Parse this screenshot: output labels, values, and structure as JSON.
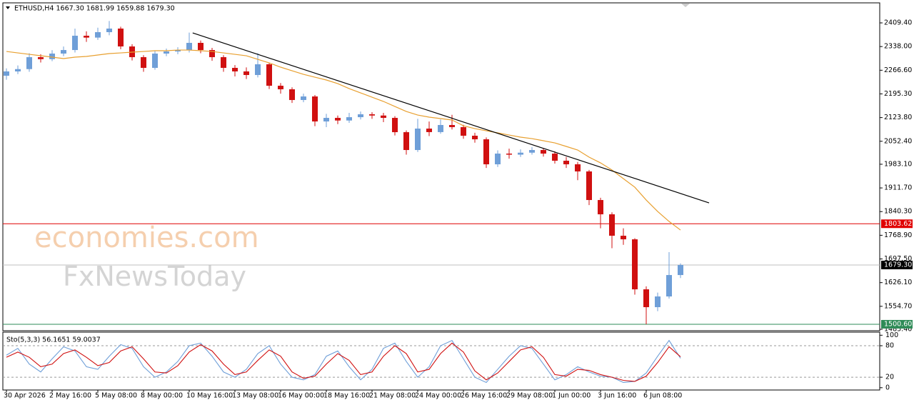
{
  "chart_data": [
    {
      "type": "candlestick",
      "title": "ETHUSD,H4  1667.30 1681.99 1659.88 1679.30",
      "watermark": [
        "economies.com",
        "FxNewsToday"
      ],
      "categories": [
        "30 Apr 2026",
        null,
        null,
        null,
        "2 May 16:00",
        null,
        null,
        null,
        "5 May 08:00",
        null,
        null,
        null,
        "8 May 00:00",
        null,
        null,
        null,
        "10 May 16:00",
        null,
        null,
        null,
        "13 May 08:00",
        null,
        null,
        null,
        "16 May 00:00",
        null,
        null,
        null,
        "18 May 16:00",
        null,
        null,
        null,
        "21 May 08:00",
        null,
        null,
        null,
        "24 May 00:00",
        null,
        null,
        null,
        "26 May 16:00",
        null,
        null,
        null,
        "29 May 08:00",
        null,
        null,
        null,
        "1 Jun 00:00",
        null,
        null,
        null,
        "3 Jun 16:00",
        null,
        null,
        null,
        "6 Jun 08:00",
        null,
        null,
        null
      ],
      "open": [
        2250.0,
        2263.0,
        2270.0,
        2306.0,
        2300.0,
        2316.8,
        2327.5,
        2370.6,
        2365.0,
        2381.4,
        2392.2,
        2338.3,
        2306.0,
        2273.7,
        2316.8,
        2323.2,
        2327.5,
        2349.1,
        2327.5,
        2306.0,
        2273.7,
        2263.0,
        2252.2,
        2284.5,
        2219.8,
        2209.1,
        2176.8,
        2187.5,
        2112.1,
        2122.9,
        2115.0,
        2125.0,
        2133.7,
        2130.0,
        2122.9,
        2079.8,
        2026.0,
        2090.6,
        2080.0,
        2101.4,
        2095.0,
        2069.1,
        2058.3,
        1982.9,
        2015.2,
        2012.0,
        2018.0,
        2026.0,
        2015.2,
        1993.7,
        1982.9,
        1961.4,
        1875.2,
        1832.1,
        1767.5,
        1756.7,
        1605.9,
        1552.1,
        1584.4,
        1649.0
      ],
      "high": [
        2272,
        2281,
        2318,
        2315,
        2327,
        2338,
        2392,
        2384,
        2395,
        2415,
        2398,
        2345,
        2312,
        2324,
        2332,
        2336,
        2380,
        2356,
        2334,
        2312,
        2282,
        2275,
        2318,
        2290,
        2228,
        2215,
        2196,
        2192,
        2135,
        2130,
        2138,
        2142,
        2140,
        2138,
        2128,
        2085,
        2120,
        2112,
        2118,
        2132,
        2102,
        2078,
        2064,
        2025,
        2030,
        2028,
        2035,
        2032,
        2022,
        2005,
        1990,
        1966,
        1882,
        1838,
        1790,
        1760,
        1615,
        1596,
        1718,
        1684
      ],
      "low": [
        2238,
        2255,
        2262,
        2290,
        2294,
        2309,
        2320,
        2352,
        2358,
        2372,
        2330,
        2296,
        2262,
        2268,
        2309,
        2315,
        2320,
        2318,
        2295,
        2262,
        2248,
        2240,
        2245,
        2210,
        2196,
        2168,
        2170,
        2098,
        2095,
        2104,
        2108,
        2118,
        2120,
        2110,
        2070,
        2012,
        2020,
        2068,
        2075,
        2088,
        2060,
        2048,
        1972,
        1975,
        2000,
        2005,
        2012,
        2006,
        1985,
        1972,
        1935,
        1860,
        1790,
        1730,
        1740,
        1590,
        1500.6,
        1540,
        1578,
        1640
      ],
      "close": [
        2263.0,
        2270.0,
        2306.0,
        2300.0,
        2316.8,
        2327.5,
        2370.6,
        2365.0,
        2381.4,
        2392.2,
        2338.3,
        2306.0,
        2273.7,
        2316.8,
        2323.2,
        2327.5,
        2349.1,
        2327.5,
        2306.0,
        2273.7,
        2263.0,
        2252.2,
        2284.5,
        2219.8,
        2209.1,
        2176.8,
        2187.5,
        2112.1,
        2122.9,
        2115.0,
        2125.0,
        2133.7,
        2130.0,
        2122.9,
        2079.8,
        2026.0,
        2090.6,
        2080.0,
        2101.4,
        2095.0,
        2069.1,
        2058.3,
        1982.9,
        2015.2,
        2012.0,
        2018.0,
        2026.0,
        2015.2,
        1993.7,
        1982.9,
        1961.4,
        1875.2,
        1832.1,
        1767.5,
        1756.7,
        1605.9,
        1552.1,
        1584.4,
        1649.0,
        1679.3
      ],
      "up_color": "#6f9fd8",
      "down_color": "#d01010",
      "ma": {
        "color": "#e8a030",
        "values": [
          2323.2,
          2318.9,
          2314.6,
          2310.3,
          2306.0,
          2301.7,
          2306.0,
          2308.2,
          2312.5,
          2316.8,
          2318.9,
          2321.1,
          2323.2,
          2325.4,
          2325.4,
          2327.5,
          2327.5,
          2325.4,
          2323.2,
          2318.9,
          2314.6,
          2310.3,
          2299.5,
          2288.8,
          2275.9,
          2265.1,
          2254.3,
          2245.7,
          2237.1,
          2226.3,
          2211.2,
          2198.3,
          2185.4,
          2172.5,
          2157.4,
          2142.3,
          2131.5,
          2125.1,
          2120.8,
          2116.5,
          2099.2,
          2090.6,
          2084.1,
          2077.7,
          2071.2,
          2064.8,
          2060.4,
          2054.0,
          2047.5,
          2036.8,
          2026.0,
          2004.5,
          1987.2,
          1965.7,
          1939.6,
          1913.9,
          1875.2,
          1840.7,
          1810.6,
          1784.7
        ]
      },
      "trendline": {
        "color": "#000000",
        "x": [
          16.3,
          61.5
        ],
        "y": [
          2379.2,
          1866.6
        ]
      },
      "hlines": [
        {
          "value": 1803.62,
          "label": "1803.62",
          "color": "#e00000",
          "label_color": "#e00000"
        },
        {
          "value": 1500.6,
          "label": "1500.60",
          "color": "#2e8b57",
          "label_color": "#2e8b57"
        },
        {
          "value": 1679.3,
          "label": "1679.30",
          "color": "#c0c0c0",
          "label_color": "#000000"
        }
      ],
      "ylim": [
        1481.1,
        2467.6
      ],
      "yticks": [
        {
          "value": 2409.4,
          "label": "2409.40"
        },
        {
          "value": 2338,
          "label": "2338.00"
        },
        {
          "value": 2266.6,
          "label": "2266.60"
        },
        {
          "value": 2195.3,
          "label": "2195.30"
        },
        {
          "value": 2123.8,
          "label": "2123.80"
        },
        {
          "value": 2052.4,
          "label": "2052.40"
        },
        {
          "value": 1983.1,
          "label": "1983.10"
        },
        {
          "value": 1911.7,
          "label": "1911.70"
        },
        {
          "value": 1840.3,
          "label": "1840.30"
        },
        {
          "value": 1768.9,
          "label": "1768.90"
        },
        {
          "value": 1697.5,
          "label": "1697.50"
        },
        {
          "value": 1626.1,
          "label": "1626.10"
        },
        {
          "value": 1554.7,
          "label": "1554.70"
        },
        {
          "value": 1485.4,
          "label": "1485.40"
        }
      ]
    },
    {
      "type": "line",
      "title": "Sto(5,3,3) 56.1651 59.0037",
      "series": [
        {
          "color": "#6f9fd8",
          "values": [
            62,
            75,
            45,
            30,
            55,
            78,
            70,
            40,
            35,
            60,
            82,
            75,
            40,
            20,
            30,
            50,
            80,
            85,
            60,
            30,
            20,
            35,
            65,
            80,
            45,
            20,
            15,
            25,
            60,
            70,
            40,
            15,
            35,
            75,
            85,
            50,
            20,
            40,
            80,
            90,
            55,
            20,
            10,
            35,
            60,
            80,
            75,
            45,
            15,
            25,
            40,
            30,
            22,
            20,
            10,
            12,
            28,
            60,
            90,
            56.1651
          ]
        },
        {
          "color": "#d01010",
          "values": [
            58,
            68,
            58,
            40,
            45,
            65,
            72,
            58,
            42,
            48,
            70,
            78,
            55,
            30,
            28,
            42,
            68,
            82,
            70,
            45,
            25,
            30,
            52,
            72,
            60,
            30,
            18,
            22,
            45,
            65,
            52,
            25,
            30,
            60,
            80,
            65,
            30,
            35,
            65,
            85,
            68,
            32,
            15,
            28,
            50,
            72,
            78,
            58,
            25,
            22,
            35,
            33,
            25,
            20,
            14,
            12,
            22,
            48,
            78,
            59.0037
          ]
        }
      ],
      "levels": [
        80,
        20
      ],
      "ylim": [
        -3,
        104.5
      ],
      "yticks": [
        100,
        80,
        20,
        0
      ]
    }
  ]
}
